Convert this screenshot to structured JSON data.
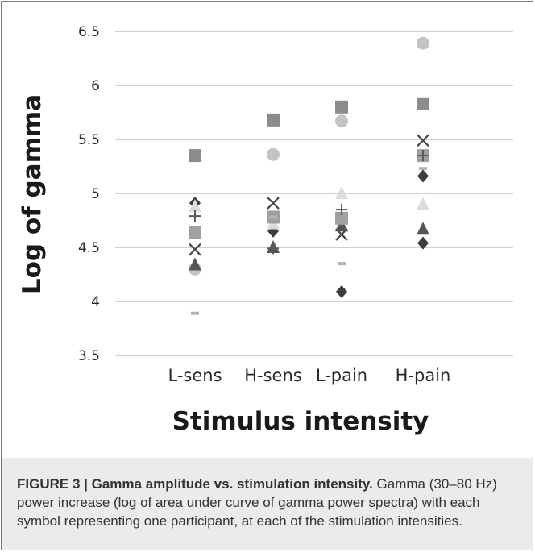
{
  "chart_data": {
    "type": "scatter",
    "xlabel": "Stimulus intensity",
    "ylabel": "Log of gamma",
    "categories": [
      "L-sens",
      "H-sens",
      "L-pain",
      "H-pain"
    ],
    "ylim": [
      3.5,
      6.5
    ],
    "yticks": [
      "3.5",
      "4",
      "4.5",
      "5",
      "5.5",
      "6",
      "6.5"
    ],
    "grid": true,
    "legend": "none",
    "series": [
      {
        "marker": "square",
        "color": "#8c8c8c",
        "values": [
          5.35,
          5.68,
          5.8,
          5.83
        ]
      },
      {
        "marker": "circle",
        "color": "#c4c4c4",
        "values": [
          4.3,
          5.36,
          5.67,
          6.39
        ]
      },
      {
        "marker": "x",
        "color": "#4a4a4a",
        "values": [
          4.48,
          4.91,
          4.62,
          5.49
        ]
      },
      {
        "marker": "diamond",
        "color": "#3d3d3d",
        "values": [
          4.91,
          4.65,
          4.09,
          4.54
        ]
      },
      {
        "marker": "triangle",
        "color": "#555555",
        "values": [
          4.34,
          4.5,
          4.7,
          4.67
        ]
      },
      {
        "marker": "triangle",
        "color": "#dcdcdc",
        "values": [
          4.88,
          4.72,
          5.0,
          4.9
        ]
      },
      {
        "marker": "square",
        "color": "#a0a0a0",
        "values": [
          4.64,
          4.78,
          4.77,
          5.35
        ]
      },
      {
        "marker": "dash",
        "color": "#b4b4b4",
        "values": [
          3.89,
          4.78,
          4.35,
          5.23
        ]
      },
      {
        "marker": "plus",
        "color": "#5a5a5a",
        "values": [
          4.79,
          4.49,
          4.85,
          5.35
        ]
      },
      {
        "marker": "diamond",
        "color": "#3d3d3d",
        "values": [
          null,
          null,
          null,
          5.16
        ]
      }
    ]
  },
  "caption": {
    "title": "FIGURE 3 | Gamma amplitude vs. stimulation intensity.",
    "text": " Gamma (30–80 Hz) power increase (log of area under curve of gamma power spectra) with each symbol representing one participant, at each of the stimulation intensities."
  }
}
